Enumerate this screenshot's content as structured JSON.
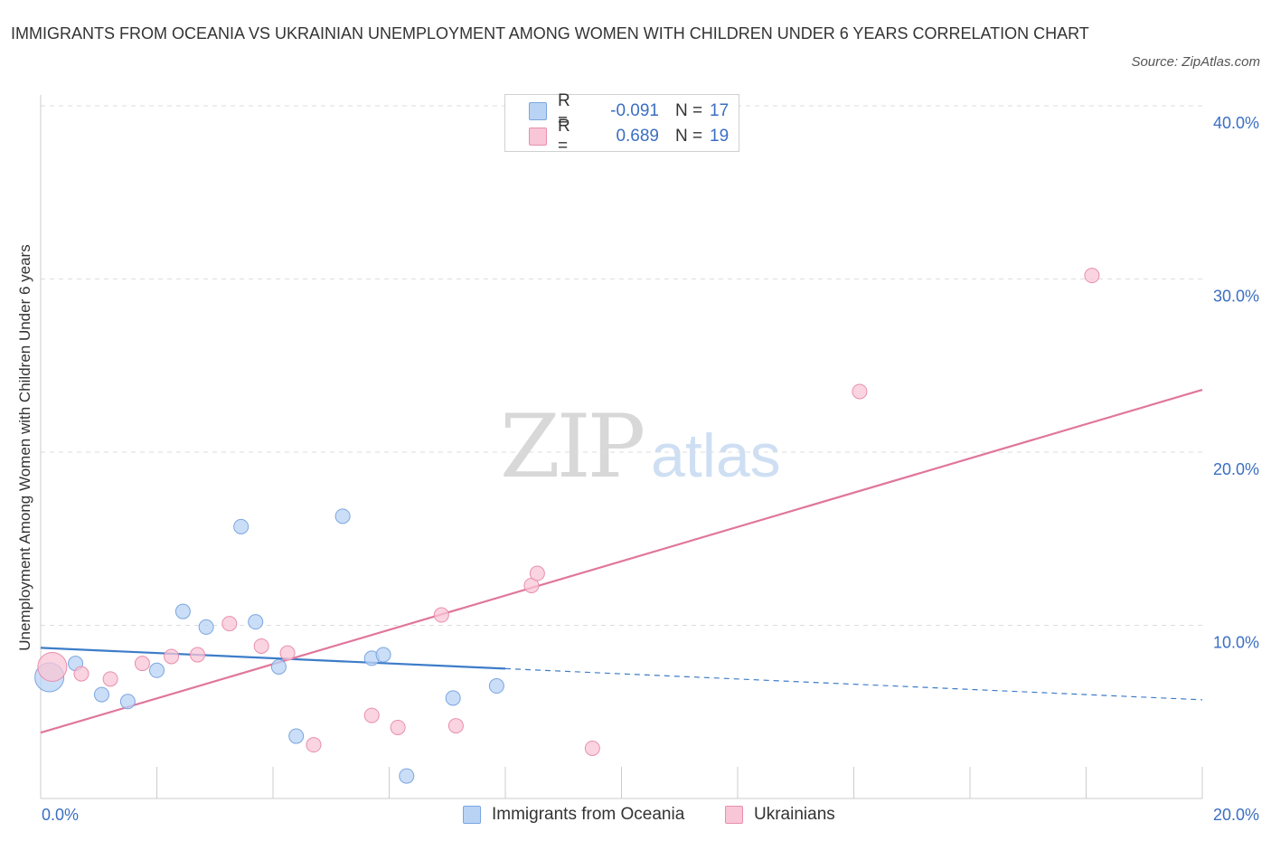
{
  "title": "IMMIGRANTS FROM OCEANIA VS UKRAINIAN UNEMPLOYMENT AMONG WOMEN WITH CHILDREN UNDER 6 YEARS CORRELATION CHART",
  "source": "Source: ZipAtlas.com",
  "watermark": {
    "zip": "ZIP",
    "atlas": "atlas"
  },
  "colors": {
    "blue_fill": "#b9d3f5",
    "blue_stroke": "#7aa6de",
    "blue_line": "#3d7cc9",
    "pink_fill": "#f8c6d6",
    "pink_stroke": "#e98fad",
    "pink_line": "#e0769c",
    "tick_text": "#3b6fc2",
    "grid": "#dddddd"
  },
  "legend_top": [
    {
      "r_label": "R =",
      "r_value": "-0.091",
      "n_label": "N =",
      "n_value": "17"
    },
    {
      "r_label": "R =",
      "r_value": "0.689",
      "n_label": "N =",
      "n_value": "19"
    }
  ],
  "chart_data": {
    "type": "scatter",
    "title": "IMMIGRANTS FROM OCEANIA VS UKRAINIAN UNEMPLOYMENT AMONG WOMEN WITH CHILDREN UNDER 6 YEARS CORRELATION CHART",
    "xlabel": "",
    "ylabel": "Unemployment Among Women with Children Under 6 years",
    "xlim": [
      0,
      20
    ],
    "ylim": [
      0,
      40
    ],
    "x_tick_labels": [
      "0.0%",
      "20.0%"
    ],
    "y_ticks": [
      10,
      20,
      30,
      40
    ],
    "y_tick_labels": [
      "10.0%",
      "20.0%",
      "30.0%",
      "40.0%"
    ],
    "grid": true,
    "legend_position": "bottom",
    "series": [
      {
        "name": "Immigrants from Oceania",
        "color": "blue",
        "points": [
          {
            "x": 0.15,
            "y": 7.0,
            "size": "large"
          },
          {
            "x": 0.6,
            "y": 7.8
          },
          {
            "x": 1.05,
            "y": 6.0
          },
          {
            "x": 1.5,
            "y": 5.6
          },
          {
            "x": 2.0,
            "y": 7.4
          },
          {
            "x": 2.45,
            "y": 10.8
          },
          {
            "x": 2.85,
            "y": 9.9
          },
          {
            "x": 3.45,
            "y": 15.7
          },
          {
            "x": 3.7,
            "y": 10.2
          },
          {
            "x": 4.1,
            "y": 7.6
          },
          {
            "x": 4.4,
            "y": 3.6
          },
          {
            "x": 5.2,
            "y": 16.3
          },
          {
            "x": 5.7,
            "y": 8.1
          },
          {
            "x": 5.9,
            "y": 8.3
          },
          {
            "x": 6.3,
            "y": 1.3
          },
          {
            "x": 7.1,
            "y": 5.8
          },
          {
            "x": 7.85,
            "y": 6.5
          }
        ],
        "trend": {
          "x_start": 0,
          "y_start": 8.7,
          "x_solid_end": 8.0,
          "y_solid_end": 7.5,
          "x_end": 20,
          "y_end": 5.7
        }
      },
      {
        "name": "Ukrainians",
        "color": "pink",
        "points": [
          {
            "x": 0.2,
            "y": 7.6,
            "size": "large"
          },
          {
            "x": 0.7,
            "y": 7.2
          },
          {
            "x": 1.2,
            "y": 6.9
          },
          {
            "x": 1.75,
            "y": 7.8
          },
          {
            "x": 2.25,
            "y": 8.2
          },
          {
            "x": 2.7,
            "y": 8.3
          },
          {
            "x": 3.25,
            "y": 10.1
          },
          {
            "x": 3.8,
            "y": 8.8
          },
          {
            "x": 4.25,
            "y": 8.4
          },
          {
            "x": 4.7,
            "y": 3.1
          },
          {
            "x": 5.7,
            "y": 4.8
          },
          {
            "x": 6.15,
            "y": 4.1
          },
          {
            "x": 6.9,
            "y": 10.6
          },
          {
            "x": 7.15,
            "y": 4.2
          },
          {
            "x": 8.45,
            "y": 12.3
          },
          {
            "x": 8.55,
            "y": 13.0
          },
          {
            "x": 9.5,
            "y": 2.9
          },
          {
            "x": 14.1,
            "y": 23.5
          },
          {
            "x": 18.1,
            "y": 30.2
          }
        ],
        "trend": {
          "x_start": 0,
          "y_start": 3.8,
          "x_end": 20,
          "y_end": 23.6
        }
      }
    ]
  }
}
